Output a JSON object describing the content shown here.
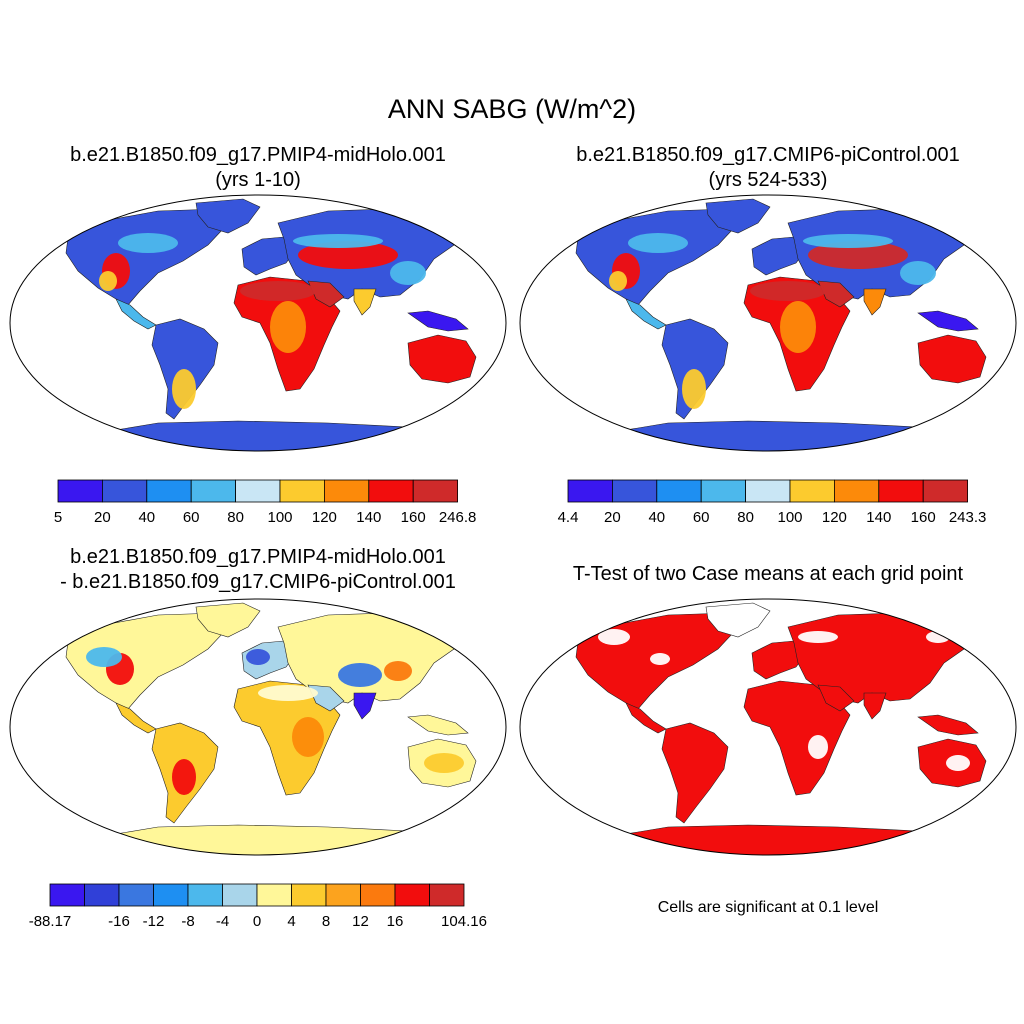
{
  "title": "ANN SABG (W/m^2)",
  "panels": [
    {
      "id": "p1",
      "title_line1": "b.e21.B1850.f09_g17.PMIP4-midHolo.001",
      "title_line2": "(yrs 1-10)",
      "colorbar": {
        "colors": [
          "#3a17f0",
          "#3755db",
          "#1e8ff2",
          "#4cb8ec",
          "#c9e6f5",
          "#fccb2e",
          "#fc8a0a",
          "#f20d0d",
          "#cf2a2a"
        ],
        "labels": [
          "5",
          "20",
          "40",
          "60",
          "80",
          "100",
          "120",
          "140",
          "160",
          "246.8"
        ]
      }
    },
    {
      "id": "p2",
      "title_line1": "b.e21.B1850.f09_g17.CMIP6-piControl.001",
      "title_line2": "(yrs 524-533)",
      "colorbar": {
        "colors": [
          "#3a17f0",
          "#3755db",
          "#1e8ff2",
          "#4cb8ec",
          "#c9e6f5",
          "#fccb2e",
          "#fc8a0a",
          "#f20d0d",
          "#cf2a2a"
        ],
        "labels": [
          "4.4",
          "20",
          "40",
          "60",
          "80",
          "100",
          "120",
          "140",
          "160",
          "243.3"
        ]
      }
    },
    {
      "id": "p3",
      "title_line1": "b.e21.B1850.f09_g17.PMIP4-midHolo.001",
      "title_line2": "- b.e21.B1850.f09_g17.CMIP6-piControl.001",
      "colorbar": {
        "colors": [
          "#3a17f0",
          "#3040d8",
          "#3a77e0",
          "#1e8ff2",
          "#4cb8ec",
          "#a9d5ea",
          "#fff799",
          "#fccb2e",
          "#fca31e",
          "#fb7a0e",
          "#f20d0d",
          "#cf2a2a"
        ],
        "labels": [
          "-88.17",
          "",
          "-16",
          "-12",
          "-8",
          "-4",
          "0",
          "4",
          "8",
          "12",
          "16",
          "",
          "104.16"
        ]
      }
    },
    {
      "id": "p4",
      "title_line1": "T-Test of two Case means at each grid point",
      "note": "Cells are significant at 0.1 level",
      "fill": "#f20d0d"
    }
  ]
}
